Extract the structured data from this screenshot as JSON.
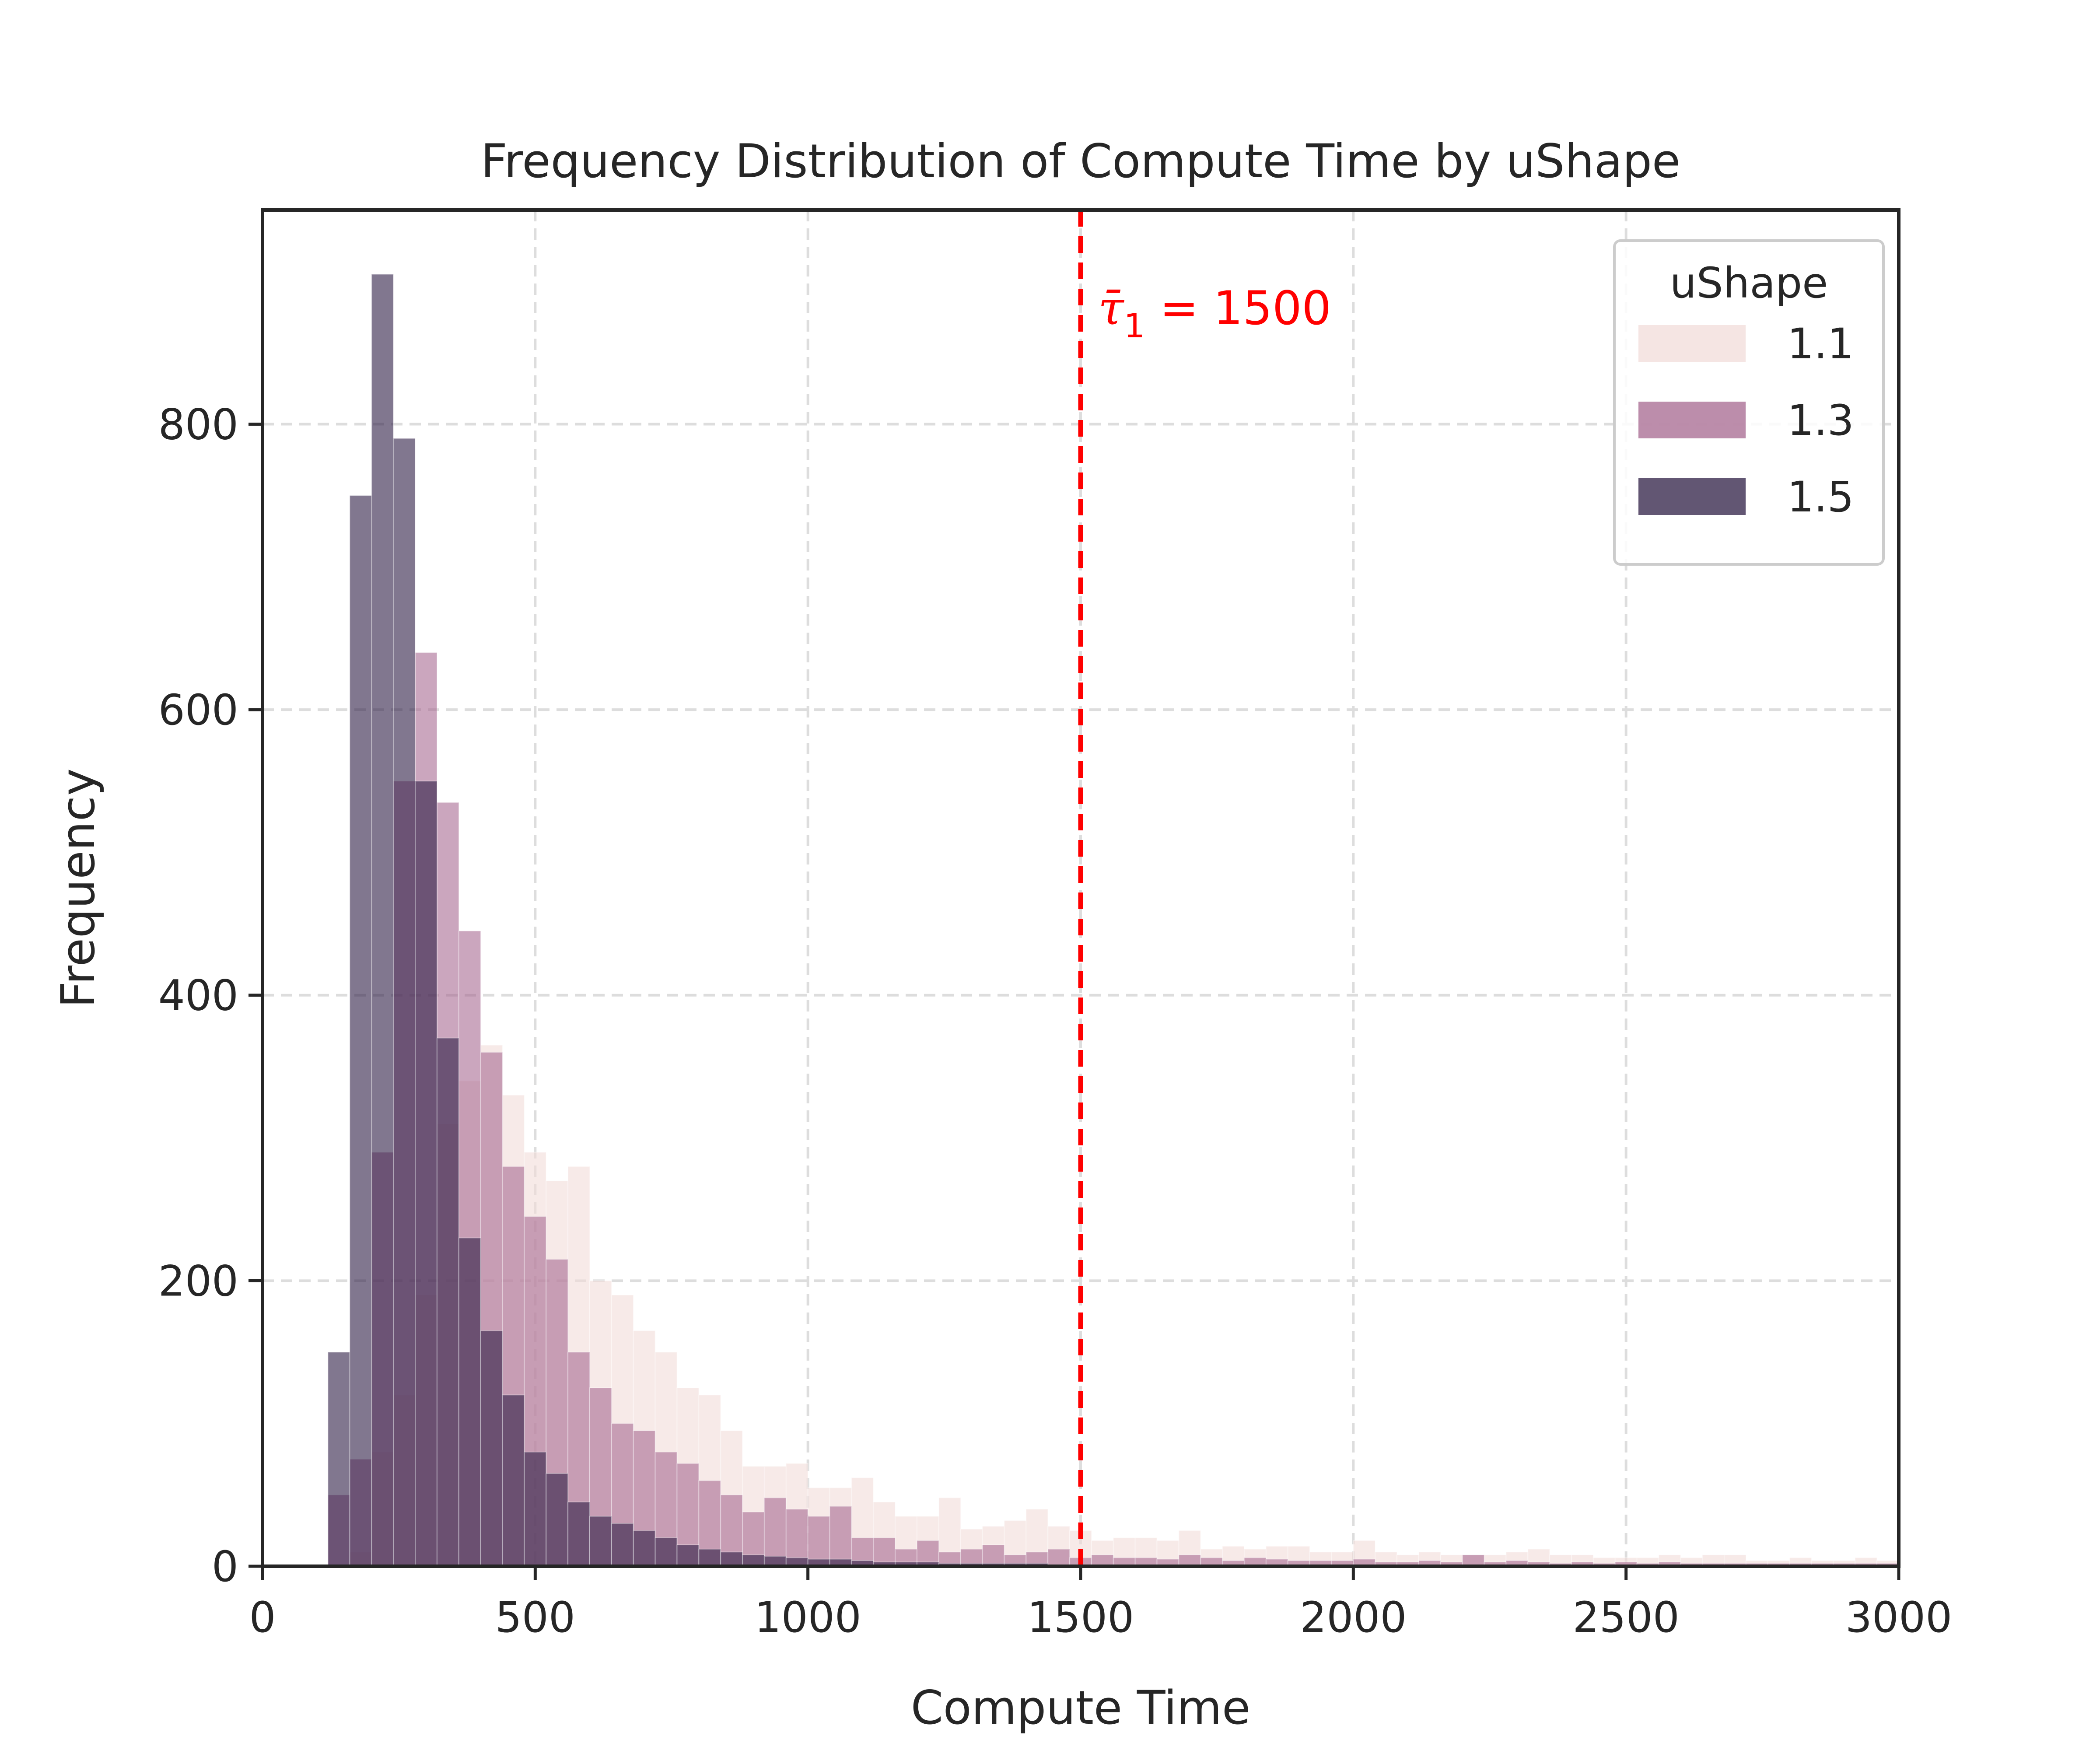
{
  "chart_data": {
    "type": "histogram",
    "title": "Frequency Distribution of Compute Time by uShape",
    "xlabel": "Compute Time",
    "ylabel": "Frequency",
    "xlim": [
      0,
      3000
    ],
    "ylim": [
      0,
      950
    ],
    "xticks": [
      0,
      500,
      1000,
      1500,
      2000,
      2500,
      3000
    ],
    "xtick_labels": [
      "0",
      "500",
      "1000",
      "1500",
      "2000",
      "2500",
      "3000"
    ],
    "yticks": [
      0,
      200,
      400,
      600,
      800
    ],
    "ytick_labels": [
      "0",
      "200",
      "400",
      "600",
      "800"
    ],
    "grid": true,
    "legend": {
      "title": "uShape",
      "position": "top-right"
    },
    "bin_width": 40,
    "series": [
      {
        "name": "1.1",
        "color": "#f2dcd9",
        "opacity": 0.6,
        "bins": [
          {
            "x": 160,
            "y": 10
          },
          {
            "x": 200,
            "y": 80
          },
          {
            "x": 240,
            "y": 120
          },
          {
            "x": 280,
            "y": 190
          },
          {
            "x": 320,
            "y": 310
          },
          {
            "x": 360,
            "y": 340
          },
          {
            "x": 400,
            "y": 365
          },
          {
            "x": 440,
            "y": 330
          },
          {
            "x": 480,
            "y": 290
          },
          {
            "x": 520,
            "y": 270
          },
          {
            "x": 560,
            "y": 280
          },
          {
            "x": 600,
            "y": 200
          },
          {
            "x": 640,
            "y": 190
          },
          {
            "x": 680,
            "y": 165
          },
          {
            "x": 720,
            "y": 150
          },
          {
            "x": 760,
            "y": 125
          },
          {
            "x": 800,
            "y": 120
          },
          {
            "x": 840,
            "y": 95
          },
          {
            "x": 880,
            "y": 70
          },
          {
            "x": 920,
            "y": 70
          },
          {
            "x": 960,
            "y": 72
          },
          {
            "x": 1000,
            "y": 55
          },
          {
            "x": 1040,
            "y": 55
          },
          {
            "x": 1080,
            "y": 62
          },
          {
            "x": 1120,
            "y": 45
          },
          {
            "x": 1160,
            "y": 35
          },
          {
            "x": 1200,
            "y": 35
          },
          {
            "x": 1240,
            "y": 48
          },
          {
            "x": 1280,
            "y": 26
          },
          {
            "x": 1320,
            "y": 28
          },
          {
            "x": 1360,
            "y": 32
          },
          {
            "x": 1400,
            "y": 40
          },
          {
            "x": 1440,
            "y": 28
          },
          {
            "x": 1480,
            "y": 25
          },
          {
            "x": 1520,
            "y": 18
          },
          {
            "x": 1560,
            "y": 20
          },
          {
            "x": 1600,
            "y": 20
          },
          {
            "x": 1640,
            "y": 18
          },
          {
            "x": 1680,
            "y": 25
          },
          {
            "x": 1720,
            "y": 12
          },
          {
            "x": 1760,
            "y": 14
          },
          {
            "x": 1800,
            "y": 12
          },
          {
            "x": 1840,
            "y": 14
          },
          {
            "x": 1880,
            "y": 14
          },
          {
            "x": 1920,
            "y": 10
          },
          {
            "x": 1960,
            "y": 10
          },
          {
            "x": 2000,
            "y": 18
          },
          {
            "x": 2040,
            "y": 10
          },
          {
            "x": 2080,
            "y": 8
          },
          {
            "x": 2120,
            "y": 10
          },
          {
            "x": 2160,
            "y": 8
          },
          {
            "x": 2200,
            "y": 8
          },
          {
            "x": 2240,
            "y": 8
          },
          {
            "x": 2280,
            "y": 10
          },
          {
            "x": 2320,
            "y": 12
          },
          {
            "x": 2360,
            "y": 8
          },
          {
            "x": 2400,
            "y": 8
          },
          {
            "x": 2440,
            "y": 6
          },
          {
            "x": 2480,
            "y": 6
          },
          {
            "x": 2520,
            "y": 6
          },
          {
            "x": 2560,
            "y": 8
          },
          {
            "x": 2600,
            "y": 6
          },
          {
            "x": 2640,
            "y": 8
          },
          {
            "x": 2680,
            "y": 8
          },
          {
            "x": 2720,
            "y": 4
          },
          {
            "x": 2760,
            "y": 4
          },
          {
            "x": 2800,
            "y": 6
          },
          {
            "x": 2840,
            "y": 4
          },
          {
            "x": 2880,
            "y": 4
          },
          {
            "x": 2920,
            "y": 6
          },
          {
            "x": 2960,
            "y": 4
          }
        ]
      },
      {
        "name": "1.3",
        "color": "#a05c88",
        "opacity": 0.55,
        "bins": [
          {
            "x": 120,
            "y": 50
          },
          {
            "x": 160,
            "y": 75
          },
          {
            "x": 200,
            "y": 290
          },
          {
            "x": 240,
            "y": 550
          },
          {
            "x": 280,
            "y": 640
          },
          {
            "x": 320,
            "y": 535
          },
          {
            "x": 360,
            "y": 445
          },
          {
            "x": 400,
            "y": 360
          },
          {
            "x": 440,
            "y": 280
          },
          {
            "x": 480,
            "y": 245
          },
          {
            "x": 520,
            "y": 215
          },
          {
            "x": 560,
            "y": 150
          },
          {
            "x": 600,
            "y": 125
          },
          {
            "x": 640,
            "y": 100
          },
          {
            "x": 680,
            "y": 95
          },
          {
            "x": 720,
            "y": 80
          },
          {
            "x": 760,
            "y": 72
          },
          {
            "x": 800,
            "y": 60
          },
          {
            "x": 840,
            "y": 50
          },
          {
            "x": 880,
            "y": 38
          },
          {
            "x": 920,
            "y": 48
          },
          {
            "x": 960,
            "y": 40
          },
          {
            "x": 1000,
            "y": 35
          },
          {
            "x": 1040,
            "y": 42
          },
          {
            "x": 1080,
            "y": 20
          },
          {
            "x": 1120,
            "y": 20
          },
          {
            "x": 1160,
            "y": 12
          },
          {
            "x": 1200,
            "y": 18
          },
          {
            "x": 1240,
            "y": 10
          },
          {
            "x": 1280,
            "y": 12
          },
          {
            "x": 1320,
            "y": 15
          },
          {
            "x": 1360,
            "y": 8
          },
          {
            "x": 1400,
            "y": 10
          },
          {
            "x": 1440,
            "y": 12
          },
          {
            "x": 1480,
            "y": 6
          },
          {
            "x": 1520,
            "y": 8
          },
          {
            "x": 1560,
            "y": 6
          },
          {
            "x": 1600,
            "y": 6
          },
          {
            "x": 1640,
            "y": 5
          },
          {
            "x": 1680,
            "y": 8
          },
          {
            "x": 1720,
            "y": 6
          },
          {
            "x": 1760,
            "y": 4
          },
          {
            "x": 1800,
            "y": 6
          },
          {
            "x": 1840,
            "y": 5
          },
          {
            "x": 1880,
            "y": 4
          },
          {
            "x": 1920,
            "y": 4
          },
          {
            "x": 1960,
            "y": 4
          },
          {
            "x": 2000,
            "y": 5
          },
          {
            "x": 2040,
            "y": 3
          },
          {
            "x": 2080,
            "y": 3
          },
          {
            "x": 2120,
            "y": 4
          },
          {
            "x": 2160,
            "y": 3
          },
          {
            "x": 2200,
            "y": 8
          },
          {
            "x": 2240,
            "y": 3
          },
          {
            "x": 2280,
            "y": 4
          },
          {
            "x": 2320,
            "y": 3
          },
          {
            "x": 2360,
            "y": 2
          },
          {
            "x": 2400,
            "y": 3
          },
          {
            "x": 2440,
            "y": 2
          },
          {
            "x": 2480,
            "y": 3
          },
          {
            "x": 2520,
            "y": 2
          },
          {
            "x": 2560,
            "y": 3
          },
          {
            "x": 2600,
            "y": 2
          },
          {
            "x": 2640,
            "y": 2
          },
          {
            "x": 2680,
            "y": 2
          },
          {
            "x": 2720,
            "y": 2
          },
          {
            "x": 2760,
            "y": 2
          },
          {
            "x": 2800,
            "y": 2
          },
          {
            "x": 2840,
            "y": 2
          },
          {
            "x": 2880,
            "y": 2
          },
          {
            "x": 2920,
            "y": 2
          },
          {
            "x": 2960,
            "y": 2
          }
        ]
      },
      {
        "name": "1.5",
        "color": "#2d1d44",
        "opacity": 0.6,
        "bins": [
          {
            "x": 120,
            "y": 150
          },
          {
            "x": 160,
            "y": 750
          },
          {
            "x": 200,
            "y": 905
          },
          {
            "x": 240,
            "y": 790
          },
          {
            "x": 280,
            "y": 550
          },
          {
            "x": 320,
            "y": 370
          },
          {
            "x": 360,
            "y": 230
          },
          {
            "x": 400,
            "y": 165
          },
          {
            "x": 440,
            "y": 120
          },
          {
            "x": 480,
            "y": 80
          },
          {
            "x": 520,
            "y": 65
          },
          {
            "x": 560,
            "y": 45
          },
          {
            "x": 600,
            "y": 35
          },
          {
            "x": 640,
            "y": 30
          },
          {
            "x": 680,
            "y": 25
          },
          {
            "x": 720,
            "y": 20
          },
          {
            "x": 760,
            "y": 15
          },
          {
            "x": 800,
            "y": 12
          },
          {
            "x": 840,
            "y": 10
          },
          {
            "x": 880,
            "y": 8
          },
          {
            "x": 920,
            "y": 7
          },
          {
            "x": 960,
            "y": 6
          },
          {
            "x": 1000,
            "y": 5
          },
          {
            "x": 1040,
            "y": 5
          },
          {
            "x": 1080,
            "y": 4
          },
          {
            "x": 1120,
            "y": 3
          },
          {
            "x": 1160,
            "y": 3
          },
          {
            "x": 1200,
            "y": 3
          },
          {
            "x": 1240,
            "y": 2
          },
          {
            "x": 1280,
            "y": 2
          },
          {
            "x": 1320,
            "y": 2
          },
          {
            "x": 1360,
            "y": 2
          },
          {
            "x": 1400,
            "y": 2
          },
          {
            "x": 1440,
            "y": 1
          },
          {
            "x": 1480,
            "y": 1
          },
          {
            "x": 1520,
            "y": 1
          },
          {
            "x": 1560,
            "y": 1
          },
          {
            "x": 1600,
            "y": 1
          },
          {
            "x": 1640,
            "y": 1
          },
          {
            "x": 1680,
            "y": 1
          }
        ]
      }
    ],
    "annotation": {
      "type": "vline",
      "x": 1500,
      "color": "#ff0000",
      "style": "dashed",
      "symbol": "τ̄",
      "subscript": "1",
      "suffix": " = 1500"
    }
  }
}
